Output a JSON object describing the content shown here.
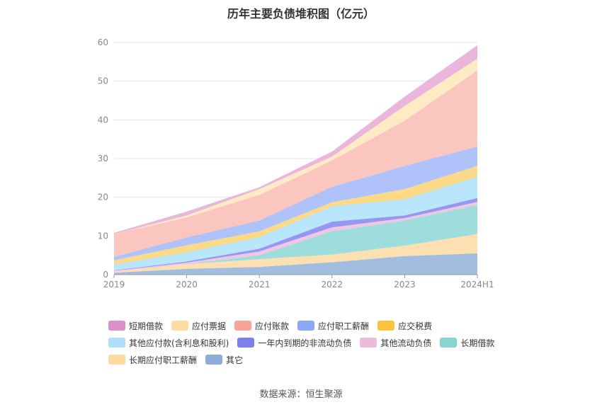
{
  "chart_data": {
    "type": "area",
    "title": "历年主要负债堆积图（亿元）",
    "categories": [
      "2019",
      "2020",
      "2021",
      "2022",
      "2023",
      "2024H1"
    ],
    "ylim": [
      0,
      60
    ],
    "yticks": [
      0,
      10,
      20,
      30,
      40,
      50,
      60
    ],
    "grid": true,
    "legend_position": "bottom",
    "stacked": true,
    "series": [
      {
        "name": "其它",
        "color": "#8eaed9",
        "values": [
          0.5,
          1.5,
          2.0,
          3.2,
          4.8,
          5.5
        ]
      },
      {
        "name": "长期应付职工薪酬",
        "color": "#fdd9a0",
        "values": [
          0.3,
          1.2,
          2.0,
          2.0,
          2.7,
          5.0
        ]
      },
      {
        "name": "长期借款",
        "color": "#88d6d3",
        "values": [
          0.0,
          0.0,
          1.0,
          6.0,
          6.5,
          7.5
        ]
      },
      {
        "name": "其他流动负债",
        "color": "#ecbbdc",
        "values": [
          0.2,
          0.4,
          1.0,
          1.0,
          0.6,
          0.8
        ]
      },
      {
        "name": "一年内到期的非流动负债",
        "color": "#8080ee",
        "values": [
          0.1,
          0.3,
          0.7,
          1.5,
          0.7,
          1.0
        ]
      },
      {
        "name": "其他应付款(含利息和股利)",
        "color": "#aae0fa",
        "values": [
          1.5,
          2.4,
          3.0,
          4.0,
          4.2,
          5.5
        ]
      },
      {
        "name": "应交税费",
        "color": "#fcd26c",
        "values": [
          1.1,
          1.8,
          1.5,
          1.0,
          2.6,
          2.8
        ]
      },
      {
        "name": "应付职工薪酬",
        "color": "#9db4f8",
        "values": [
          0.9,
          2.0,
          2.8,
          4.0,
          6.0,
          5.0
        ]
      },
      {
        "name": "应付账款",
        "color": "#fbbab2",
        "values": [
          5.9,
          5.2,
          6.6,
          6.8,
          11.7,
          19.7
        ]
      },
      {
        "name": "应付票据",
        "color": "#fde6b6",
        "values": [
          0.0,
          0.5,
          1.5,
          1.0,
          3.8,
          3.0
        ]
      },
      {
        "name": "短期借款",
        "color": "#e5a6d4",
        "values": [
          0.3,
          1.0,
          0.5,
          1.3,
          2.4,
          3.5
        ]
      }
    ]
  },
  "legend": [
    [
      {
        "label": "短期借款",
        "color": "#dc8fc8"
      },
      {
        "label": "应付票据",
        "color": "#fddda0"
      },
      {
        "label": "应付账款",
        "color": "#f7a59b"
      },
      {
        "label": "应付职工薪酬",
        "color": "#8aa8f7"
      },
      {
        "label": "应交税费",
        "color": "#fbc43d"
      }
    ],
    [
      {
        "label": "其他应付款(含利息和股利)",
        "color": "#aee0fb"
      },
      {
        "label": "一年内到期的非流动负债",
        "color": "#7d7ef0"
      },
      {
        "label": "其他流动负债",
        "color": "#ebbadc"
      },
      {
        "label": "长期借款",
        "color": "#87d4d2"
      }
    ],
    [
      {
        "label": "长期应付职工薪酬",
        "color": "#fdd9a0"
      },
      {
        "label": "其它",
        "color": "#8eaed9"
      }
    ]
  ],
  "source": "数据来源：恒生聚源"
}
